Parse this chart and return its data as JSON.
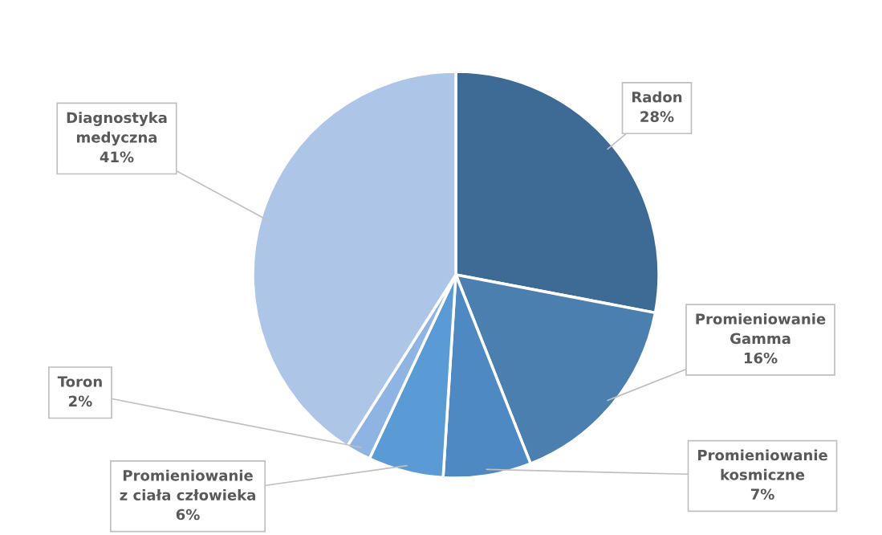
{
  "chart_data": {
    "type": "pie",
    "categories": [
      "Radon",
      "Promieniowanie\nGamma",
      "Promieniowanie\nkosmiczne",
      "Promieniowanie\nz ciała człowieka",
      "Toron",
      "Diagnostyka\nmedyczna"
    ],
    "values": [
      28,
      16,
      7,
      6,
      2,
      41
    ],
    "colors": [
      "#3e6a96",
      "#4a7fb0",
      "#4f89c4",
      "#5b9bd5",
      "#8eb4e3",
      "#adc5e6"
    ],
    "value_labels": [
      "28%",
      "16%",
      "7%",
      "6%",
      "2%",
      "41%"
    ]
  }
}
